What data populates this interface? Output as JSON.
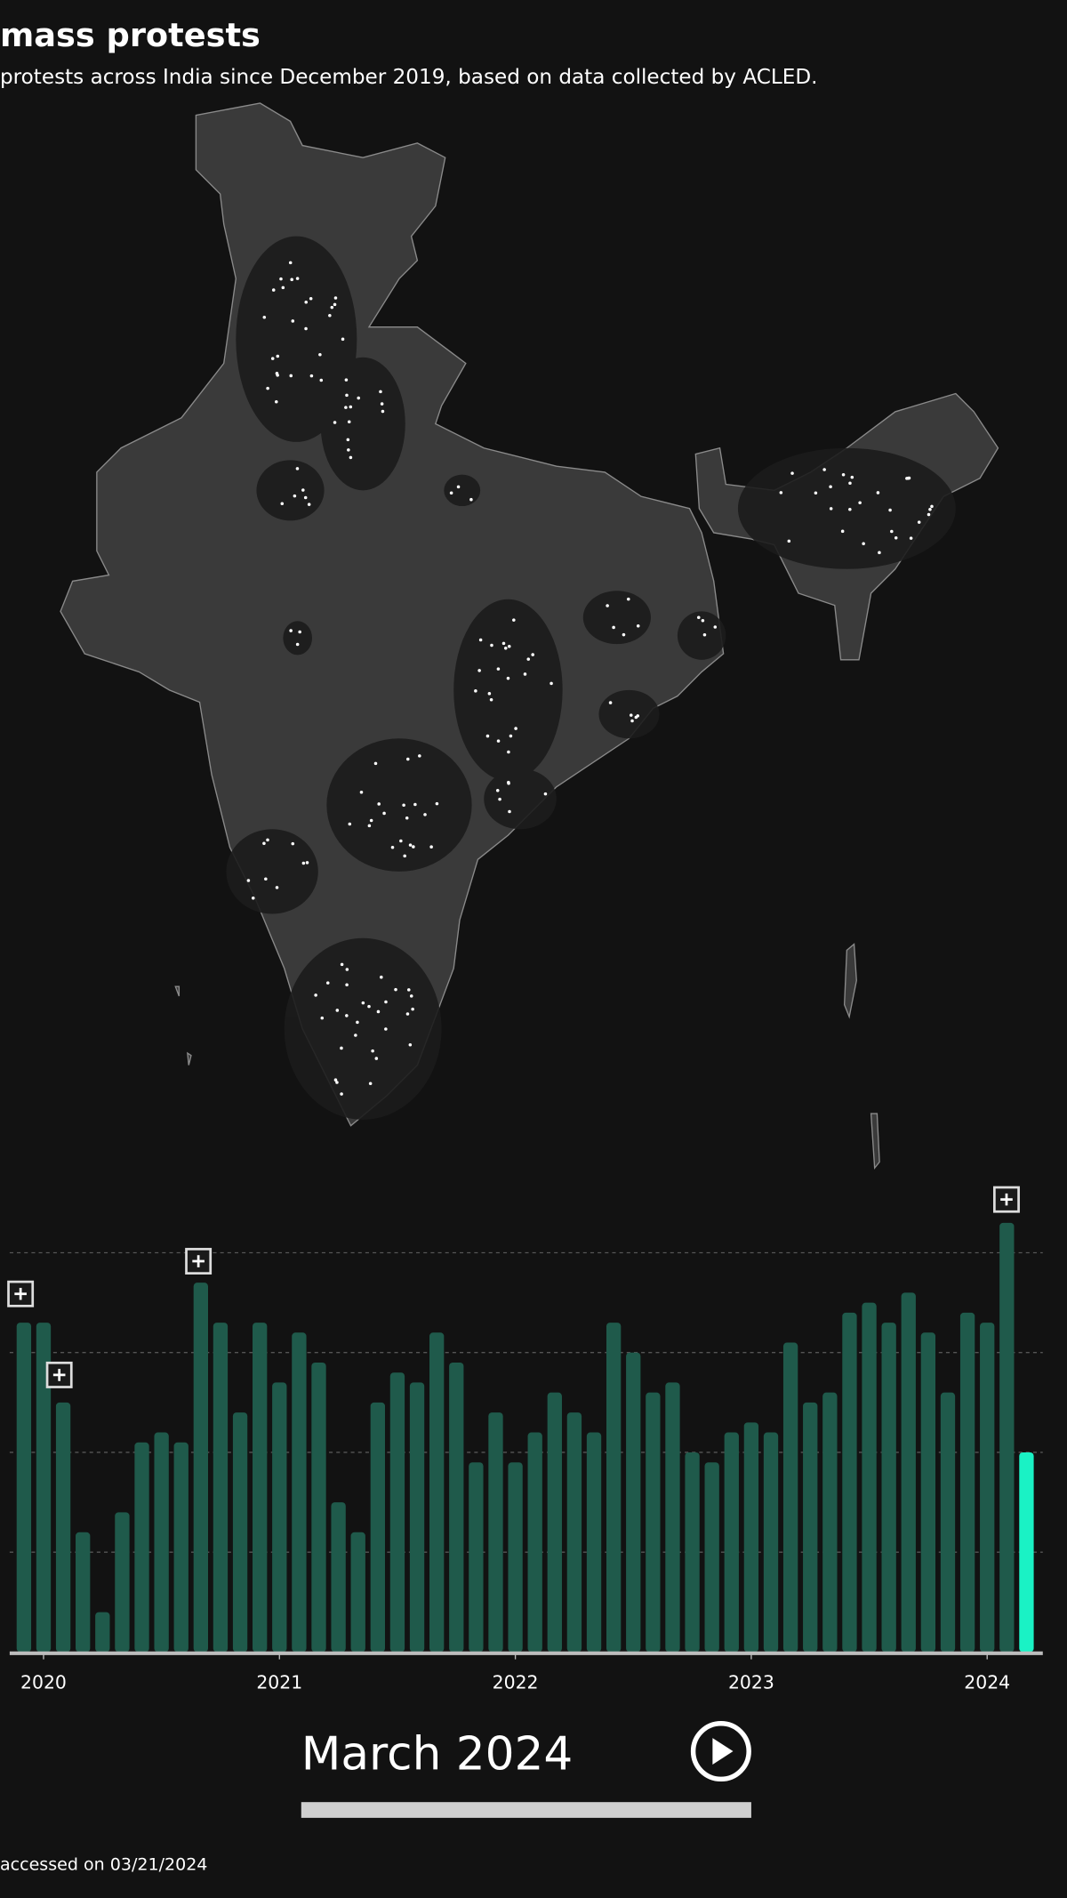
{
  "header": {
    "title": "mass protests",
    "subtitle": "protests across India since December 2019, based on data collected by ACLED."
  },
  "chart_data": {
    "type": "bar",
    "categories": [
      null,
      "2020",
      null,
      null,
      null,
      null,
      null,
      null,
      null,
      null,
      null,
      null,
      null,
      "2021",
      null,
      null,
      null,
      null,
      null,
      null,
      null,
      null,
      null,
      null,
      null,
      "2022",
      null,
      null,
      null,
      null,
      null,
      null,
      null,
      null,
      null,
      null,
      null,
      "2023",
      null,
      null,
      null,
      null,
      null,
      null,
      null,
      null,
      null,
      null,
      null,
      "2024",
      null,
      null
    ],
    "values": [
      3.3,
      3.3,
      2.5,
      1.2,
      0.4,
      1.4,
      2.1,
      2.2,
      2.1,
      3.7,
      3.3,
      2.4,
      3.3,
      2.7,
      3.2,
      2.9,
      1.5,
      1.2,
      2.5,
      2.8,
      2.7,
      3.2,
      2.9,
      1.9,
      2.4,
      1.9,
      2.2,
      2.6,
      2.4,
      2.2,
      3.3,
      3.0,
      2.6,
      2.7,
      2.0,
      1.9,
      2.2,
      2.3,
      2.2,
      3.1,
      2.5,
      2.6,
      3.4,
      3.5,
      3.3,
      3.6,
      3.2,
      2.6,
      3.4,
      3.3,
      4.3,
      2.0
    ],
    "colors": [
      "#1f5a4b",
      "#1f5a4b",
      "#1f5a4b",
      "#1f5a4b",
      "#1f5a4b",
      "#1f5a4b",
      "#1f5a4b",
      "#1f5a4b",
      "#1f5a4b",
      "#1f5a4b",
      "#1f5a4b",
      "#1f5a4b",
      "#1f5a4b",
      "#1f5a4b",
      "#1f5a4b",
      "#1f5a4b",
      "#1f5a4b",
      "#1f5a4b",
      "#1f5a4b",
      "#1f5a4b",
      "#1f5a4b",
      "#1f5a4b",
      "#1f5a4b",
      "#1f5a4b",
      "#1f5a4b",
      "#1f5a4b",
      "#1f5a4b",
      "#1f5a4b",
      "#1f5a4b",
      "#1f5a4b",
      "#1f5a4b",
      "#1f5a4b",
      "#1f5a4b",
      "#1f5a4b",
      "#1f5a4b",
      "#1f5a4b",
      "#1f5a4b",
      "#1f5a4b",
      "#1f5a4b",
      "#1f5a4b",
      "#1f5a4b",
      "#1f5a4b",
      "#1f5a4b",
      "#1f5a4b",
      "#1f5a4b",
      "#1f5a4b",
      "#1f5a4b",
      "#1f5a4b",
      "#1f5a4b",
      "#1f5a4b",
      "#1f5a4b",
      "#1af2c5"
    ],
    "ylim": [
      0,
      4.5
    ],
    "yticks": [
      1,
      2,
      3,
      4
    ],
    "grid": true
  },
  "controls": {
    "current_period": "March 2024"
  },
  "footer": {
    "note": "accessed on 03/21/2024"
  }
}
